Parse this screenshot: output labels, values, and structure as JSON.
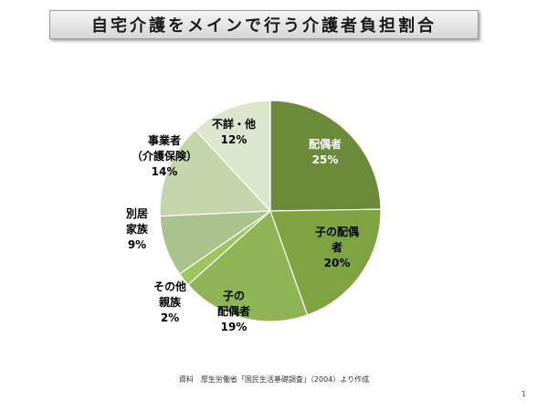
{
  "title": "自宅介護をメインで行う介護者負担割合",
  "chart_data": {
    "type": "pie",
    "slices": [
      {
        "label_lines": [
          "配偶者"
        ],
        "value_label": "25%",
        "value": 25,
        "color": "#6b8a3a",
        "label_color": "#ffffff"
      },
      {
        "label_lines": [
          "子の配偶",
          "者"
        ],
        "value_label": "20%",
        "value": 20,
        "color": "#7ea340",
        "label_color": "#000000"
      },
      {
        "label_lines": [
          "子の",
          "配偶者"
        ],
        "value_label": "19%",
        "value": 19,
        "color": "#8fb456",
        "label_color": "#000000"
      },
      {
        "label_lines": [
          "その他",
          "親族"
        ],
        "value_label": "2%",
        "value": 2,
        "color": "#9fc45c",
        "label_color": "#000000"
      },
      {
        "label_lines": [
          "別居",
          "家族"
        ],
        "value_label": "9%",
        "value": 9,
        "color": "#aac28c",
        "label_color": "#000000"
      },
      {
        "label_lines": [
          "事業者",
          "（介護保険）"
        ],
        "value_label": "14%",
        "value": 14,
        "color": "#c4d5ab",
        "label_color": "#000000"
      },
      {
        "label_lines": [
          "不詳・他"
        ],
        "value_label": "12%",
        "value": 12,
        "color": "#dbe6cc",
        "label_color": "#000000"
      }
    ]
  },
  "source": "資料　厚生労働省「国民生活基礎調査」（2004）より作成",
  "page_number": "1"
}
